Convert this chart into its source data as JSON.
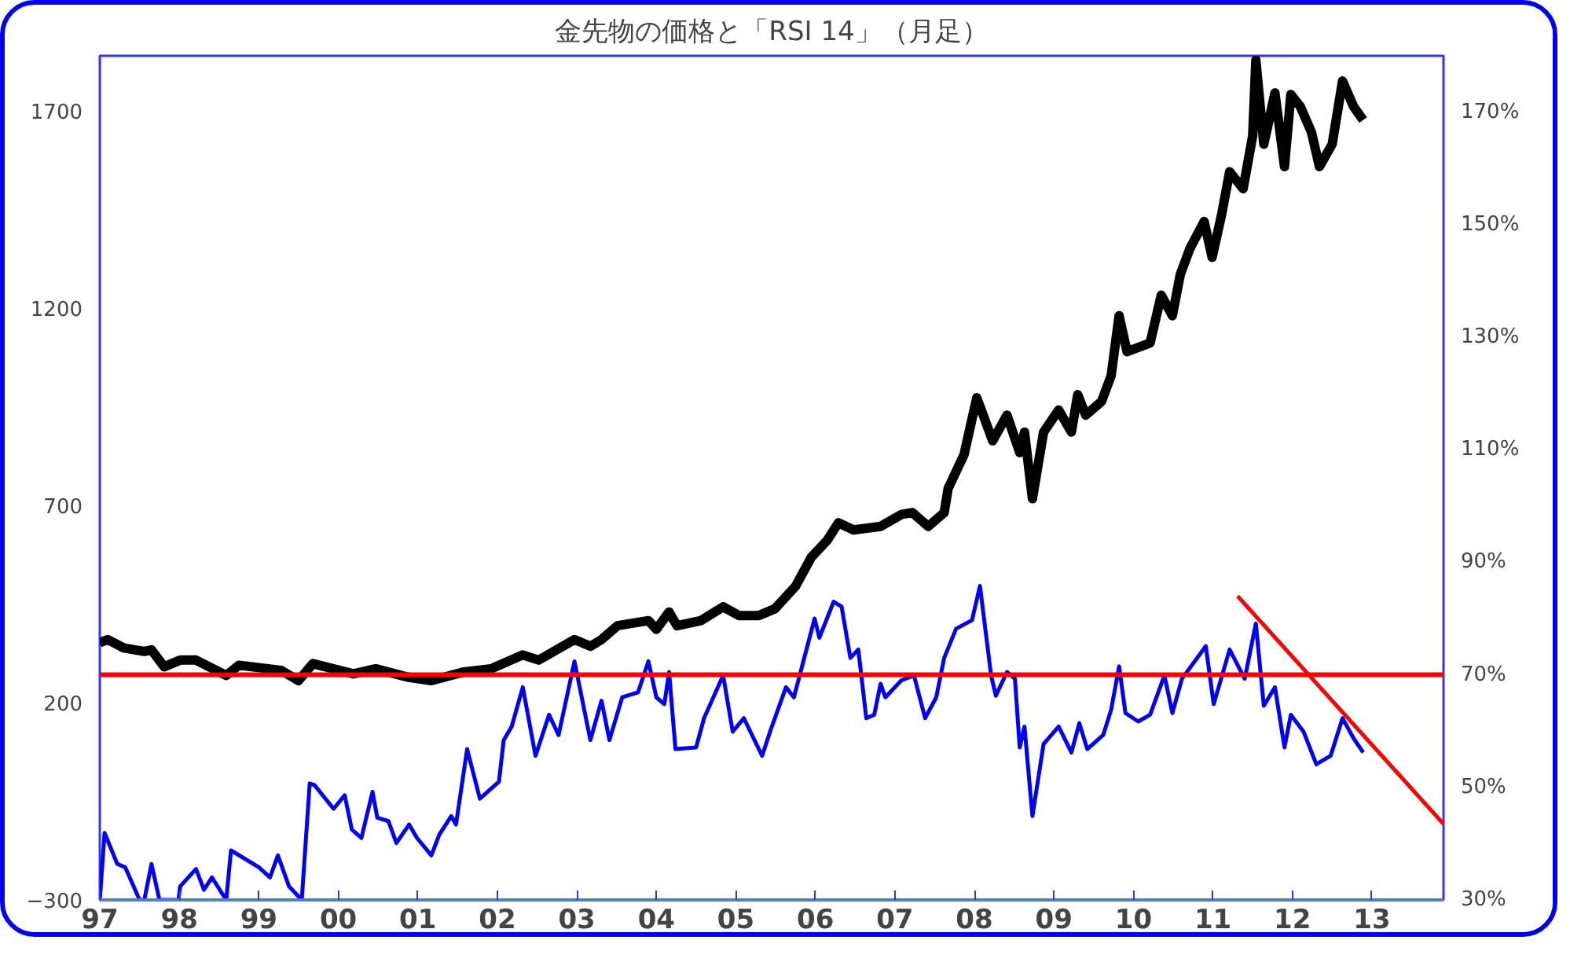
{
  "chart_data": {
    "type": "line",
    "title": "金先物の価格と「RSI 14」（月足）",
    "xlim": [
      1997,
      2013.9
    ],
    "xticks": [
      {
        "value": 1997,
        "label": "97"
      },
      {
        "value": 1998,
        "label": "98"
      },
      {
        "value": 1999,
        "label": "99"
      },
      {
        "value": 2000,
        "label": "00"
      },
      {
        "value": 2001,
        "label": "01"
      },
      {
        "value": 2002,
        "label": "02"
      },
      {
        "value": 2003,
        "label": "03"
      },
      {
        "value": 2004,
        "label": "04"
      },
      {
        "value": 2005,
        "label": "05"
      },
      {
        "value": 2006,
        "label": "06"
      },
      {
        "value": 2007,
        "label": "07"
      },
      {
        "value": 2008,
        "label": "08"
      },
      {
        "value": 2009,
        "label": "09"
      },
      {
        "value": 2010,
        "label": "10"
      },
      {
        "value": 2011,
        "label": "11"
      },
      {
        "value": 2012,
        "label": "12"
      },
      {
        "value": 2013,
        "label": "13"
      }
    ],
    "ylim": [
      -300,
      1840
    ],
    "yticks": [
      -300,
      200,
      700,
      1200,
      1700
    ],
    "y2lim": [
      30,
      180
    ],
    "y2ticks": [
      {
        "value": 30,
        "label": "30%"
      },
      {
        "value": 50,
        "label": "50%"
      },
      {
        "value": 70,
        "label": "70%"
      },
      {
        "value": 90,
        "label": "90%"
      },
      {
        "value": 110,
        "label": "110%"
      },
      {
        "value": 130,
        "label": "130%"
      },
      {
        "value": 150,
        "label": "150%"
      },
      {
        "value": 170,
        "label": "170%"
      }
    ],
    "grid": false,
    "marker": "none",
    "line_style": "solid",
    "ref_lines": [
      {
        "axis": "y2",
        "value": 70,
        "color": "#ff0000"
      }
    ],
    "series": [
      {
        "color": "#000000",
        "x": [
          1997.0,
          1997.1,
          1997.3,
          1997.56,
          1997.65,
          1997.81,
          1998.01,
          1998.21,
          1998.59,
          1998.75,
          1999.28,
          1999.5,
          1999.68,
          2000.19,
          2000.47,
          2000.87,
          2001.17,
          2001.58,
          2001.92,
          2002.32,
          2002.52,
          2002.97,
          2003.17,
          2003.31,
          2003.51,
          2003.9,
          2004.0,
          2004.16,
          2004.26,
          2004.56,
          2004.84,
          2005.04,
          2005.29,
          2005.49,
          2005.75,
          2005.95,
          2006.15,
          2006.29,
          2006.48,
          2006.82,
          2007.08,
          2007.22,
          2007.42,
          2007.62,
          2007.67,
          2007.87,
          2008.03,
          2008.23,
          2008.41,
          2008.57,
          2008.63,
          2008.73,
          2008.87,
          2009.06,
          2009.22,
          2009.3,
          2009.4,
          2009.6,
          2009.72,
          2009.82,
          2009.92,
          2010.21,
          2010.35,
          2010.49,
          2010.59,
          2010.71,
          2010.89,
          2010.99,
          2011.11,
          2011.21,
          2011.38,
          2011.5,
          2011.54,
          2011.64,
          2011.78,
          2011.9,
          2011.98,
          2012.1,
          2012.24,
          2012.34,
          2012.5,
          2012.63,
          2012.77,
          2012.89
        ],
        "values": [
          352,
          360,
          339,
          330,
          334,
          291,
          308,
          308,
          269,
          295,
          282,
          256,
          299,
          273,
          286,
          265,
          256,
          278,
          286,
          321,
          308,
          360,
          343,
          360,
          395,
          408,
          386,
          430,
          395,
          408,
          443,
          421,
          421,
          438,
          495,
          569,
          612,
          656,
          638,
          647,
          677,
          682,
          647,
          682,
          743,
          829,
          973,
          864,
          929,
          834,
          886,
          717,
          886,
          942,
          886,
          981,
          929,
          964,
          1029,
          1181,
          1090,
          1112,
          1233,
          1181,
          1286,
          1351,
          1420,
          1329,
          1438,
          1546,
          1503,
          1637,
          1829,
          1616,
          1746,
          1559,
          1742,
          1711,
          1646,
          1559,
          1616,
          1776,
          1711,
          1677
        ]
      },
      {
        "color": "#0000ff",
        "axis": "y2",
        "x": [
          1997.0,
          1997.06,
          1997.22,
          1997.32,
          1997.5,
          1997.56,
          1997.65,
          1997.75,
          1997.99,
          1998.01,
          1998.21,
          1998.31,
          1998.41,
          1998.59,
          1998.65,
          1999.0,
          1999.14,
          1999.24,
          1999.38,
          1999.54,
          1999.64,
          1999.7,
          1999.94,
          2000.08,
          2000.17,
          2000.29,
          2000.43,
          2000.49,
          2000.63,
          2000.73,
          2000.89,
          2000.99,
          2001.17,
          2001.27,
          2001.42,
          2001.48,
          2001.62,
          2001.78,
          2002.02,
          2002.08,
          2002.18,
          2002.32,
          2002.48,
          2002.65,
          2002.77,
          2002.97,
          2003.17,
          2003.31,
          2003.41,
          2003.57,
          2003.77,
          2003.9,
          2004.0,
          2004.1,
          2004.16,
          2004.24,
          2004.5,
          2004.6,
          2004.84,
          2004.96,
          2005.1,
          2005.33,
          2005.43,
          2005.63,
          2005.73,
          2005.99,
          2006.05,
          2006.23,
          2006.33,
          2006.44,
          2006.54,
          2006.64,
          2006.74,
          2006.82,
          2006.88,
          2007.08,
          2007.24,
          2007.38,
          2007.52,
          2007.62,
          2007.77,
          2007.97,
          2008.07,
          2008.21,
          2008.27,
          2008.41,
          2008.51,
          2008.57,
          2008.63,
          2008.73,
          2008.87,
          2009.06,
          2009.22,
          2009.32,
          2009.42,
          2009.62,
          2009.72,
          2009.82,
          2009.9,
          2010.06,
          2010.21,
          2010.39,
          2010.49,
          2010.61,
          2010.91,
          2011.01,
          2011.21,
          2011.4,
          2011.54,
          2011.64,
          2011.78,
          2011.9,
          2011.98,
          2012.14,
          2012.3,
          2012.48,
          2012.63,
          2012.77,
          2012.89
        ],
        "values": [
          30,
          41.9,
          36.4,
          35.8,
          30,
          30,
          36.4,
          30,
          30,
          32.4,
          35.5,
          31.8,
          34.0,
          30,
          38.8,
          35.8,
          34.0,
          37.9,
          32.4,
          30,
          50.7,
          50.4,
          46.2,
          48.6,
          42.5,
          41.0,
          49.2,
          44.6,
          44.0,
          40.1,
          43.4,
          41.0,
          37.9,
          41.6,
          44.9,
          43.4,
          56.8,
          48.0,
          51.0,
          58.4,
          60.8,
          67.8,
          55.6,
          62.9,
          59.3,
          72.4,
          58.4,
          65.4,
          58.4,
          66.0,
          66.9,
          72.4,
          66.0,
          64.8,
          70.5,
          56.8,
          57.1,
          62.3,
          69.9,
          59.9,
          62.3,
          55.6,
          59.9,
          67.8,
          66.0,
          80.0,
          76.6,
          83.0,
          82.1,
          73.0,
          74.5,
          62.3,
          62.9,
          68.4,
          66.0,
          69.0,
          69.9,
          62.3,
          66.0,
          73.0,
          78.2,
          79.7,
          85.8,
          69.9,
          66.3,
          70.5,
          69.3,
          57.1,
          60.8,
          44.9,
          57.7,
          60.8,
          56.2,
          61.4,
          56.8,
          59.3,
          63.8,
          71.5,
          63.2,
          61.7,
          62.9,
          69.9,
          63.2,
          69.3,
          75.1,
          64.8,
          74.5,
          69.3,
          79.1,
          64.5,
          67.8,
          57.1,
          62.9,
          59.9,
          54.1,
          55.6,
          62.3,
          58.7,
          56.2
        ]
      },
      {
        "color": "#ff0000",
        "axis": "y2",
        "x": [
          2011.31,
          2013.9
        ],
        "values": [
          84.0,
          43.5
        ]
      }
    ]
  }
}
